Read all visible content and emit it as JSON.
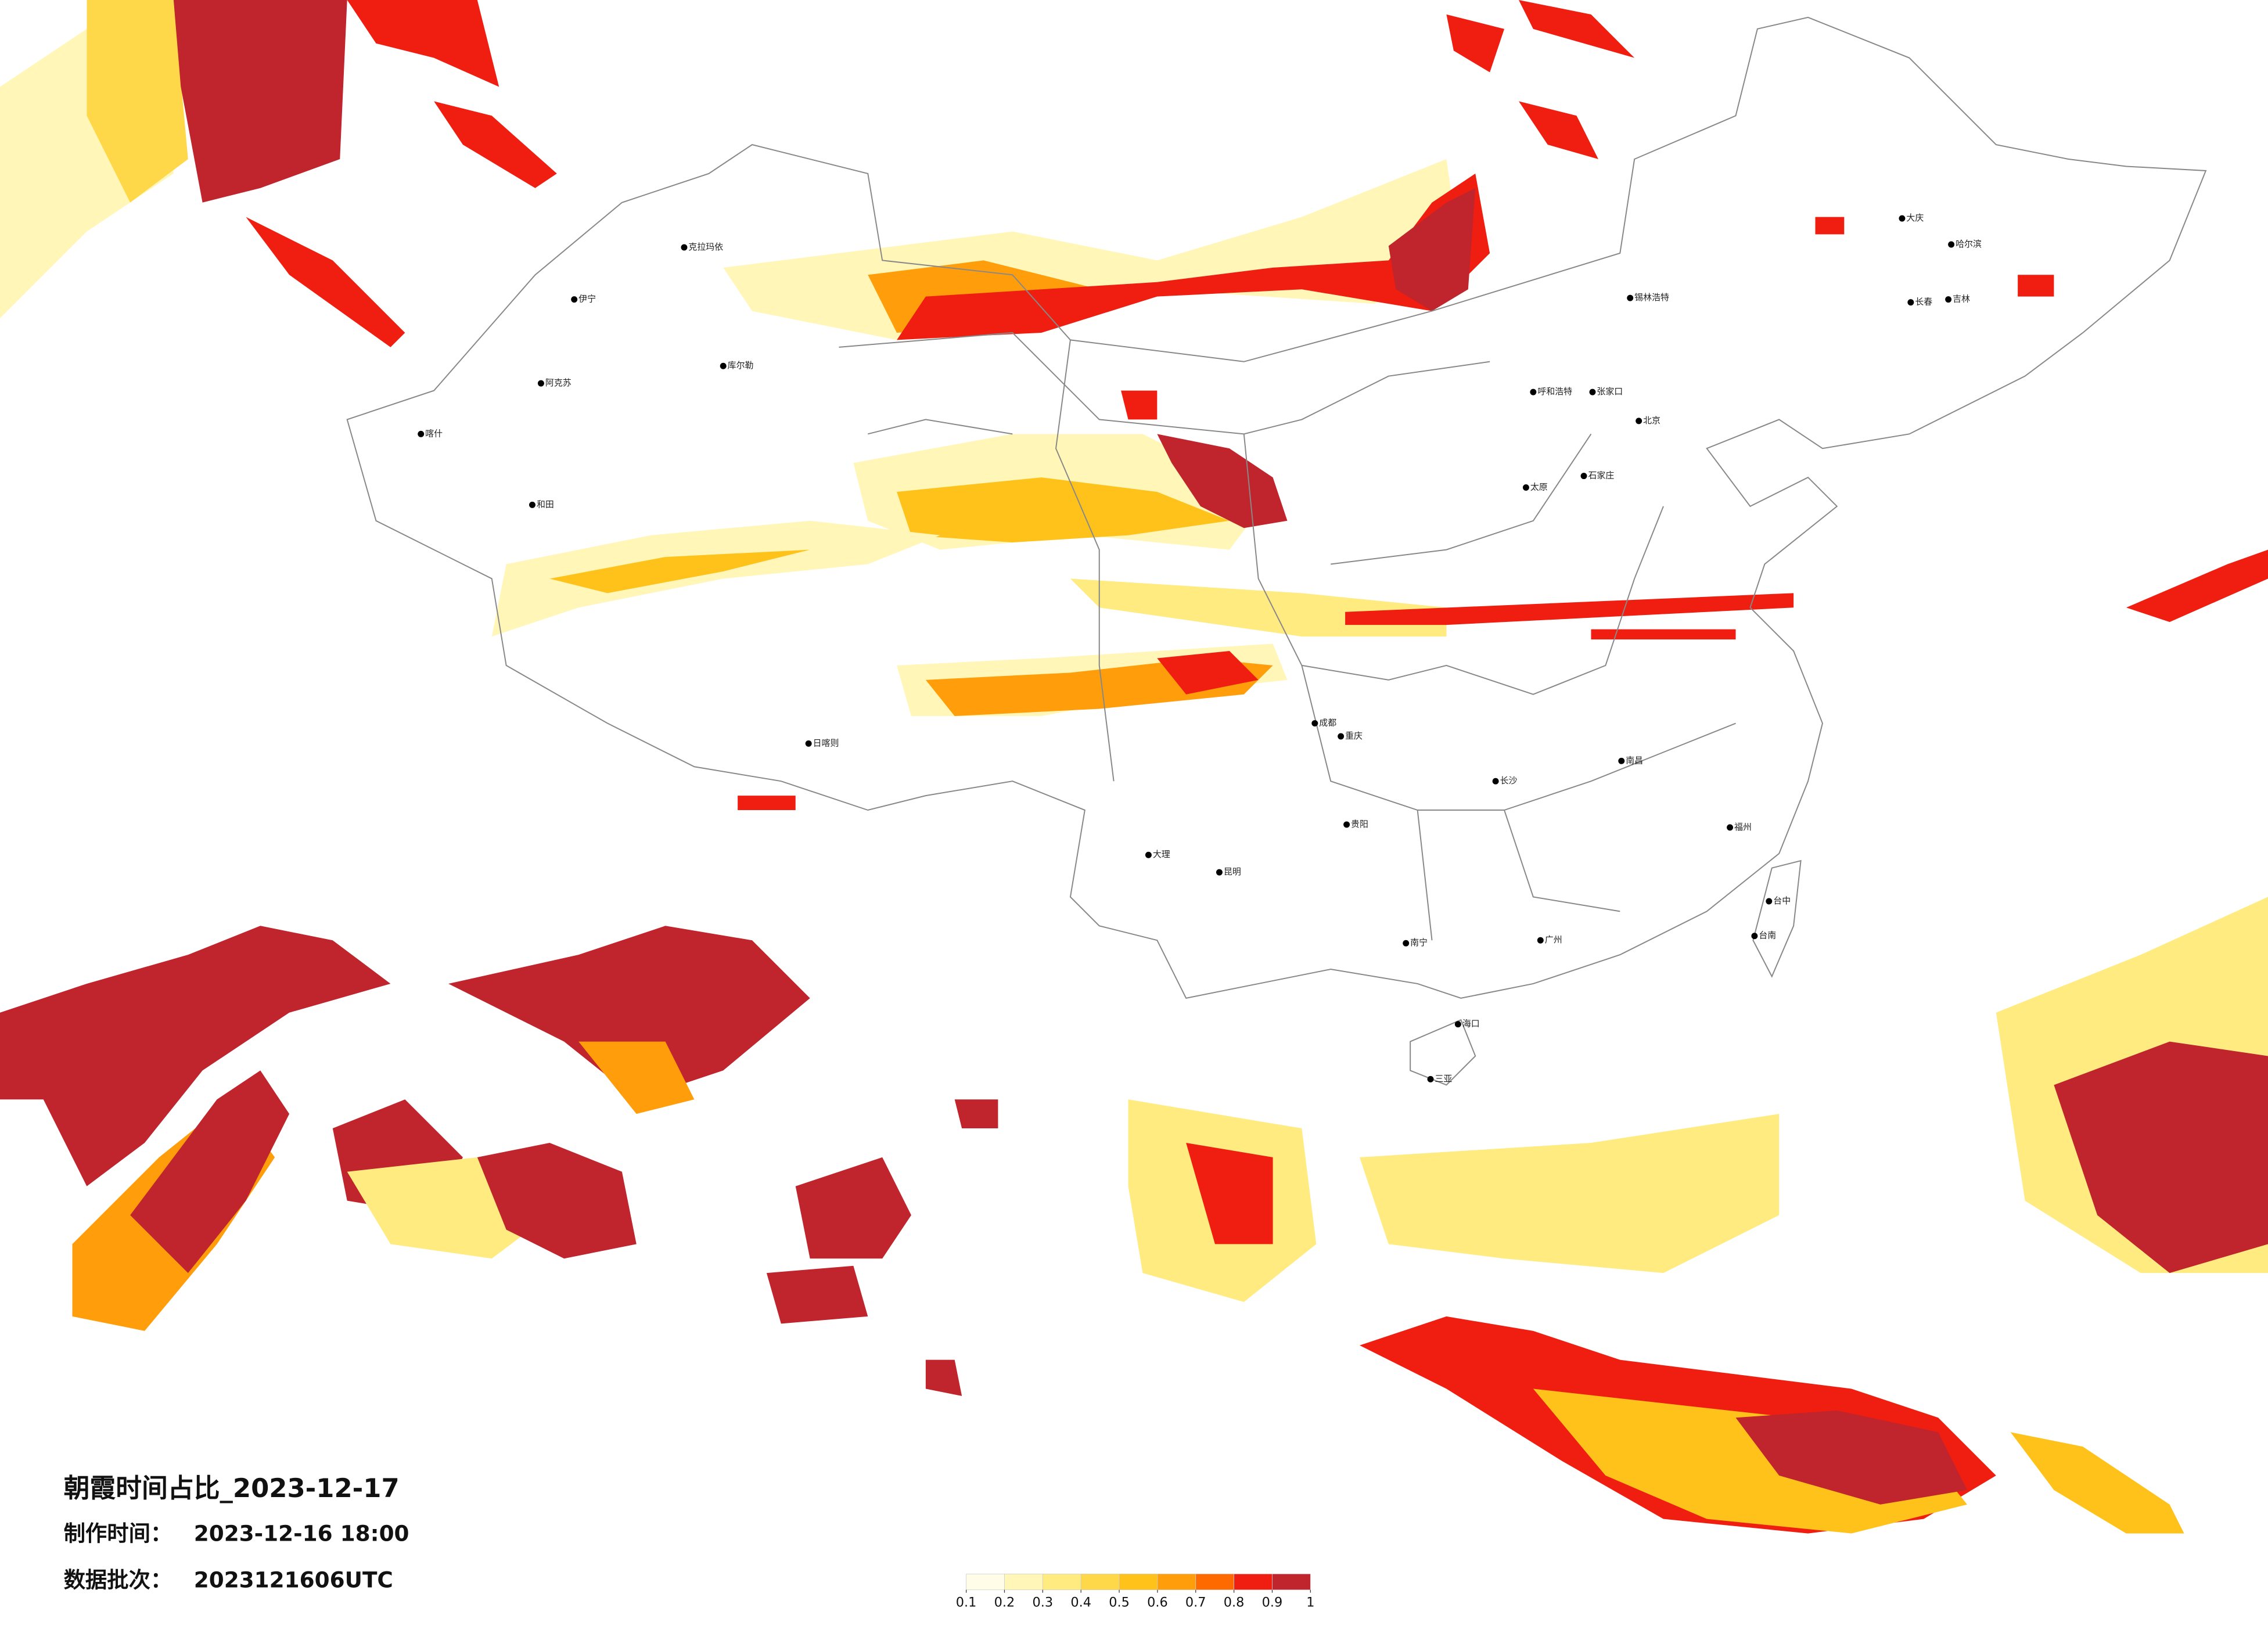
{
  "title": "朝霞时间占比_2023-12-17",
  "info": [
    {
      "label": "制作时间：",
      "value": "2023-12-16 18:00"
    },
    {
      "label": "数据批次：",
      "value": "2023121606UTC"
    }
  ],
  "legend": {
    "colors": [
      "#fffde8",
      "#fff6b8",
      "#ffeb80",
      "#ffd84a",
      "#ffc21a",
      "#ff9e0a",
      "#ff6a00",
      "#f01e10",
      "#c0242c"
    ],
    "ticks": [
      0.1,
      0.2,
      0.3,
      0.4,
      0.5,
      0.6,
      0.7,
      0.8,
      0.9,
      1
    ]
  },
  "cities": [
    "克拉玛依",
    "伊宁",
    "阿克苏",
    "库尔勒",
    "和田",
    "喀什",
    "日喀则",
    "呼和浩特",
    "锡林浩特",
    "张家口",
    "北京",
    "石家庄",
    "太原",
    "大庆",
    "哈尔滨",
    "长春",
    "吉林",
    "成都",
    "重庆",
    "贵阳",
    "昆明",
    "大理",
    "南宁",
    "海口",
    "三亚",
    "长沙",
    "南昌",
    "福州",
    "广州",
    "台中",
    "台南"
  ]
}
